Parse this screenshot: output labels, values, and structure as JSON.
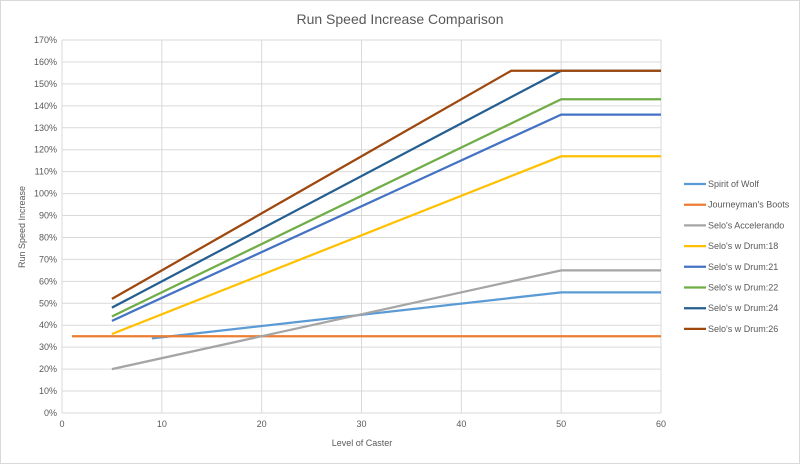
{
  "chart_data": {
    "type": "line",
    "title": "Run Speed Increase Comparison",
    "xlabel": "Level of Caster",
    "ylabel": "Run Speed Increase",
    "xlim": [
      0,
      60
    ],
    "ylim": [
      0,
      170
    ],
    "x_ticks": [
      "0",
      "10",
      "20",
      "30",
      "40",
      "50",
      "60"
    ],
    "y_ticks": [
      "0%",
      "10%",
      "20%",
      "30%",
      "40%",
      "50%",
      "60%",
      "70%",
      "80%",
      "90%",
      "100%",
      "110%",
      "120%",
      "130%",
      "140%",
      "150%",
      "160%",
      "170%"
    ],
    "grid": true,
    "legend_position": "right",
    "series": [
      {
        "name": "Spirit of Wolf",
        "color": "#5b9bd5",
        "points": [
          [
            9,
            34
          ],
          [
            50,
            55
          ],
          [
            60,
            55
          ]
        ]
      },
      {
        "name": "Journeyman's Boots",
        "color": "#ed7d31",
        "points": [
          [
            1,
            35
          ],
          [
            60,
            35
          ]
        ]
      },
      {
        "name": "Selo's Accelerando",
        "color": "#a5a5a5",
        "points": [
          [
            5,
            20
          ],
          [
            50,
            65
          ],
          [
            60,
            65
          ]
        ]
      },
      {
        "name": "Selo's w Drum:18",
        "color": "#ffc000",
        "points": [
          [
            5,
            36
          ],
          [
            50,
            117
          ],
          [
            60,
            117
          ]
        ]
      },
      {
        "name": "Selo's w Drum:21",
        "color": "#4472c4",
        "points": [
          [
            5,
            42
          ],
          [
            50,
            136
          ],
          [
            60,
            136
          ]
        ]
      },
      {
        "name": "Selo's w Drum:22",
        "color": "#70ad47",
        "points": [
          [
            5,
            44
          ],
          [
            50,
            143
          ],
          [
            60,
            143
          ]
        ]
      },
      {
        "name": "Selo's w Drum:24",
        "color": "#255e91",
        "points": [
          [
            5,
            48
          ],
          [
            50,
            156
          ],
          [
            60,
            156
          ]
        ]
      },
      {
        "name": "Selo's w Drum:26",
        "color": "#9e480e",
        "points": [
          [
            5,
            52
          ],
          [
            45,
            156
          ],
          [
            60,
            156
          ]
        ]
      }
    ]
  }
}
